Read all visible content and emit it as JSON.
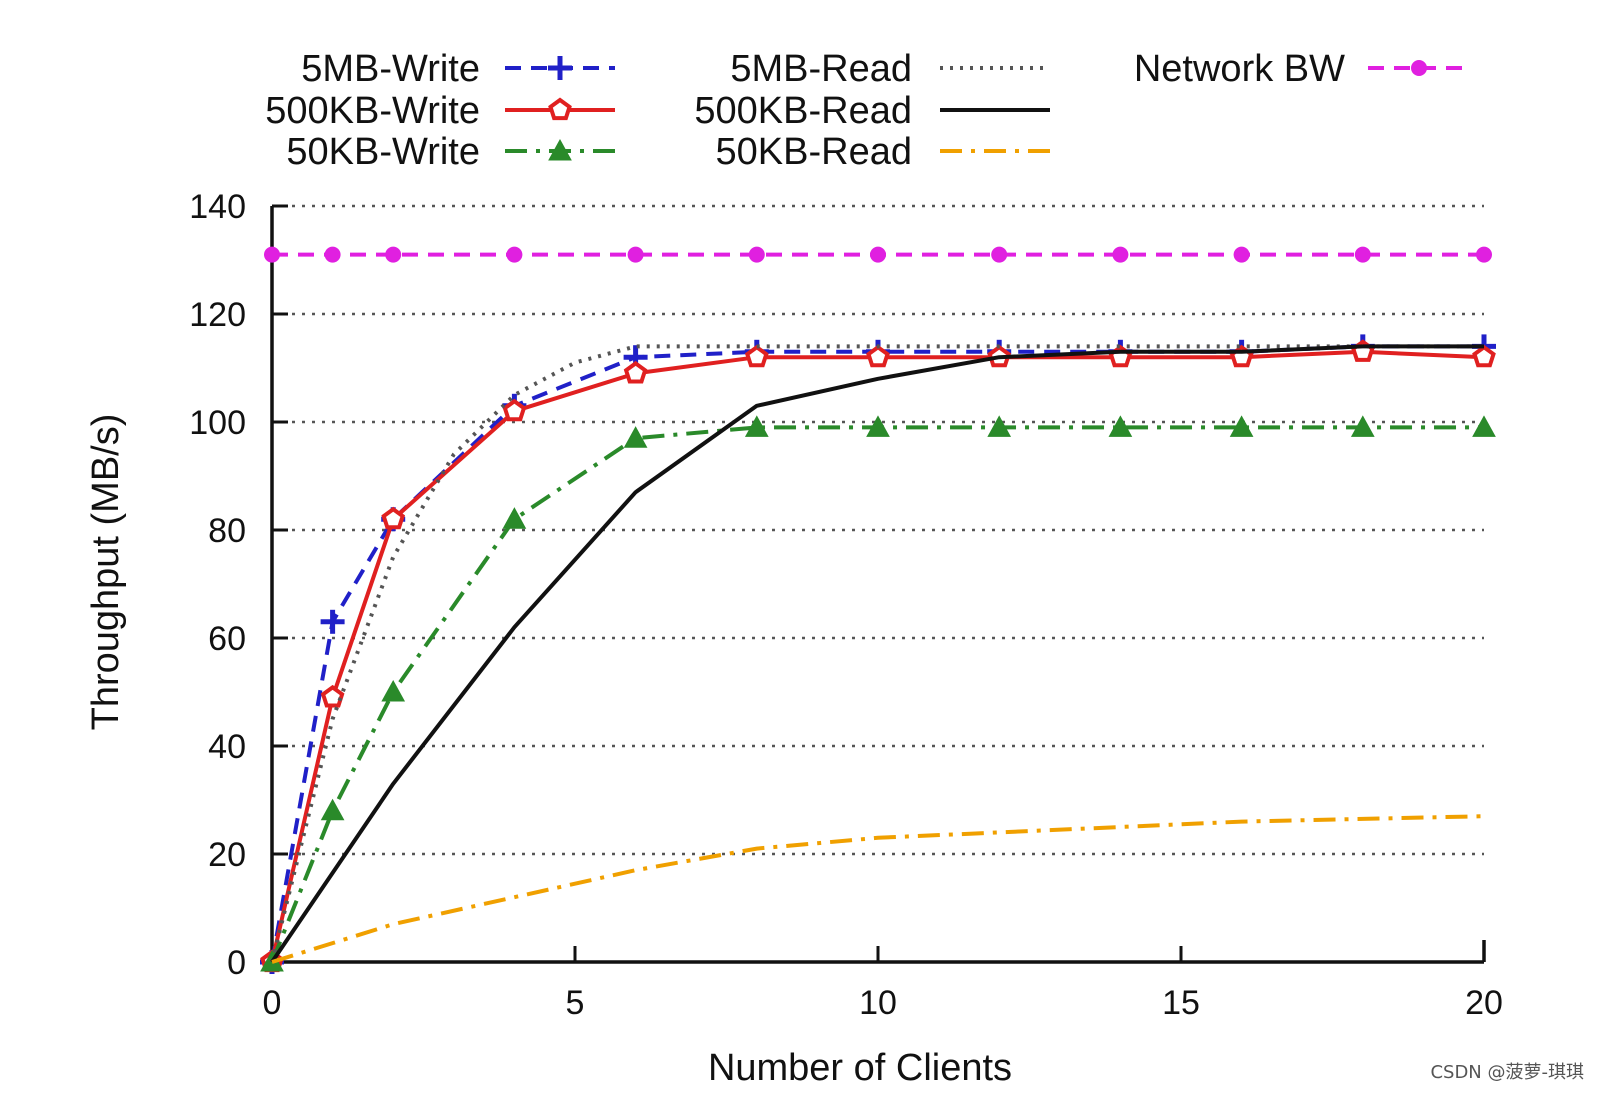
{
  "chart_data": {
    "type": "line",
    "xlabel": "Number of Clients",
    "ylabel": "Throughput (MB/s)",
    "xlim": [
      0,
      20
    ],
    "ylim": [
      0,
      140
    ],
    "xticks": [
      0,
      5,
      10,
      15,
      20
    ],
    "yticks": [
      0,
      20,
      40,
      60,
      80,
      100,
      120,
      140
    ],
    "grid": "horizontal dotted",
    "legend_position": "top",
    "series": [
      {
        "name": "5MB-Write",
        "color": "#2020c8",
        "dash": "dashed",
        "marker": "plus",
        "x": [
          0,
          1,
          2,
          4,
          6,
          8,
          10,
          12,
          14,
          16,
          18,
          20
        ],
        "y": [
          0,
          63,
          82,
          103,
          112,
          113,
          113,
          113,
          113,
          113,
          114,
          114
        ]
      },
      {
        "name": "500KB-Write",
        "color": "#e02020",
        "dash": "solid",
        "marker": "pentagon",
        "x": [
          0,
          1,
          2,
          4,
          6,
          8,
          10,
          12,
          14,
          16,
          18,
          20
        ],
        "y": [
          0,
          49,
          82,
          102,
          109,
          112,
          112,
          112,
          112,
          112,
          113,
          112
        ]
      },
      {
        "name": "50KB-Write",
        "color": "#2a8a2a",
        "dash": "dashdot",
        "marker": "triangle",
        "x": [
          0,
          1,
          2,
          4,
          6,
          8,
          10,
          12,
          14,
          16,
          18,
          20
        ],
        "y": [
          0,
          28,
          50,
          82,
          97,
          99,
          99,
          99,
          99,
          99,
          99,
          99
        ]
      },
      {
        "name": "5MB-Read",
        "color": "#555555",
        "dash": "dotted",
        "marker": "none",
        "x": [
          0,
          1,
          2,
          3,
          4,
          5,
          6,
          8,
          10,
          12,
          14,
          16,
          18,
          20
        ],
        "y": [
          0,
          45,
          75,
          94,
          105,
          111,
          114,
          114,
          114,
          114,
          114,
          114,
          114,
          114
        ]
      },
      {
        "name": "500KB-Read",
        "color": "#111111",
        "dash": "solid",
        "marker": "none",
        "x": [
          0,
          2,
          4,
          6,
          8,
          10,
          12,
          14,
          16,
          18,
          20
        ],
        "y": [
          0,
          33,
          62,
          87,
          103,
          108,
          112,
          113,
          113,
          114,
          114
        ]
      },
      {
        "name": "50KB-Read",
        "color": "#f0a000",
        "dash": "dashdot",
        "marker": "none",
        "x": [
          0,
          2,
          4,
          6,
          8,
          10,
          12,
          14,
          16,
          18,
          20
        ],
        "y": [
          0,
          7,
          12,
          17,
          21,
          23,
          24,
          25,
          26,
          26.5,
          27
        ]
      },
      {
        "name": "Network BW",
        "color": "#e020e0",
        "dash": "dashed",
        "marker": "circle",
        "x": [
          0,
          1,
          2,
          4,
          6,
          8,
          10,
          12,
          14,
          16,
          18,
          20
        ],
        "y": [
          131,
          131,
          131,
          131,
          131,
          131,
          131,
          131,
          131,
          131,
          131,
          131
        ]
      }
    ]
  },
  "credit_text": "CSDN @菠萝-琪琪"
}
